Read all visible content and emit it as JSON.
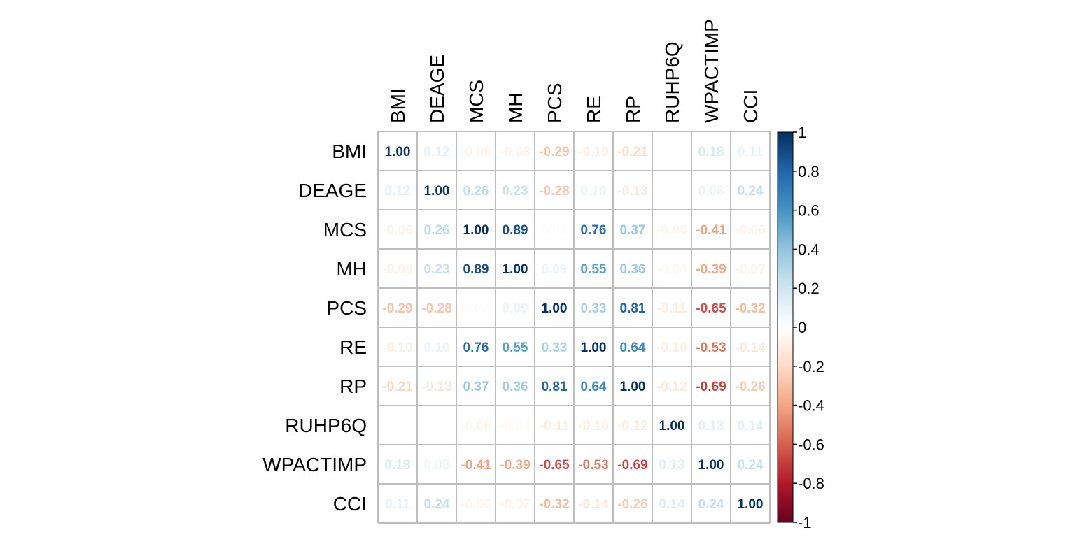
{
  "chart_data": {
    "type": "heatmap",
    "title": "",
    "xlabel": "",
    "ylabel": "",
    "variables": [
      "BMI",
      "DEAGE",
      "MCS",
      "MH",
      "PCS",
      "RE",
      "RP",
      "RUHP6Q",
      "WPACTIMP",
      "CCI"
    ],
    "matrix": [
      [
        1.0,
        0.12,
        -0.06,
        -0.08,
        -0.29,
        -0.1,
        -0.21,
        0.0,
        0.18,
        0.11
      ],
      [
        0.12,
        1.0,
        0.26,
        0.23,
        -0.28,
        0.1,
        -0.13,
        0.0,
        0.08,
        0.24
      ],
      [
        -0.06,
        0.26,
        1.0,
        0.89,
        0.02,
        0.76,
        0.37,
        -0.06,
        -0.41,
        -0.06
      ],
      [
        -0.08,
        0.23,
        0.89,
        1.0,
        0.09,
        0.55,
        0.36,
        -0.04,
        -0.39,
        -0.07
      ],
      [
        -0.29,
        -0.28,
        0.02,
        0.09,
        1.0,
        0.33,
        0.81,
        -0.11,
        -0.65,
        -0.32
      ],
      [
        -0.1,
        0.1,
        0.76,
        0.55,
        0.33,
        1.0,
        0.64,
        -0.1,
        -0.53,
        -0.14
      ],
      [
        -0.21,
        -0.13,
        0.37,
        0.36,
        0.81,
        0.64,
        1.0,
        -0.12,
        -0.69,
        -0.26
      ],
      [
        0.0,
        0.0,
        -0.06,
        -0.04,
        -0.11,
        -0.1,
        -0.12,
        1.0,
        0.13,
        0.14
      ],
      [
        0.18,
        0.08,
        -0.41,
        -0.39,
        -0.65,
        -0.53,
        -0.69,
        0.13,
        1.0,
        0.24
      ],
      [
        0.11,
        0.24,
        -0.06,
        -0.07,
        -0.32,
        -0.14,
        -0.26,
        0.14,
        0.24,
        1.0
      ]
    ],
    "value_range": [
      -1,
      1
    ],
    "colorbar_ticks": [
      1,
      0.8,
      0.6,
      0.4,
      0.2,
      0,
      -0.2,
      -0.4,
      -0.6,
      -0.8,
      -1
    ],
    "colorbar_tick_labels": [
      "1",
      "0.8",
      "0.6",
      "0.4",
      "0.2",
      "0",
      "-0.2",
      "-0.4",
      "-0.6",
      "-0.8",
      "-1"
    ],
    "colorbar_placement": "right",
    "color_scale": [
      "#67001F",
      "#B2182B",
      "#D6604D",
      "#F4A582",
      "#FDDBC7",
      "#FFFFFF",
      "#D1E5F0",
      "#92C5DE",
      "#4393C3",
      "#2166AC",
      "#053061"
    ],
    "grid": true,
    "grid_color": "#BEBEBE"
  }
}
